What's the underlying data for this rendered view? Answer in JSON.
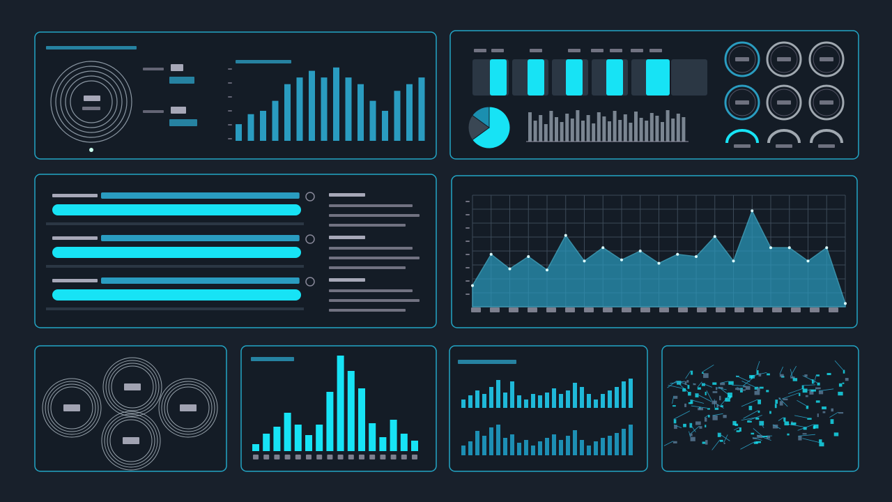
{
  "top_bars": {
    "type": "bar",
    "values": [
      25,
      40,
      45,
      60,
      85,
      95,
      105,
      95,
      110,
      95,
      85,
      60,
      45,
      75,
      85,
      95
    ]
  },
  "pie": {
    "type": "pie",
    "values": [
      65,
      20,
      15
    ]
  },
  "mini_bars": {
    "type": "bar",
    "values": [
      42,
      30,
      38,
      25,
      44,
      35,
      28,
      40,
      33,
      45,
      30,
      38,
      26,
      42,
      36,
      29,
      44,
      31,
      39,
      27,
      43,
      34,
      30,
      41,
      37,
      28,
      45,
      33,
      40,
      35
    ]
  },
  "progress": {
    "type": "progress",
    "values": [
      [
        78,
        98
      ],
      [
        78,
        98
      ],
      [
        78,
        98
      ]
    ]
  },
  "area": {
    "type": "area",
    "values": [
      19,
      47,
      34,
      45,
      33,
      64,
      41,
      53,
      42,
      50,
      39,
      47,
      45,
      63,
      41,
      86,
      53,
      53,
      41,
      53,
      3
    ]
  },
  "histogram": {
    "type": "bar",
    "values": [
      10,
      25,
      35,
      55,
      38,
      23,
      38,
      85,
      137,
      115,
      90,
      40,
      20,
      45,
      25,
      15
    ]
  },
  "twin_bars": {
    "type": "bar",
    "series": [
      {
        "values": [
          12,
          18,
          25,
          20,
          30,
          40,
          22,
          38,
          18,
          12,
          20,
          18,
          22,
          28,
          20,
          25,
          36,
          30,
          20,
          12,
          20,
          25,
          30,
          38,
          42
        ]
      },
      {
        "values": [
          14,
          20,
          35,
          28,
          40,
          44,
          25,
          30,
          18,
          22,
          14,
          20,
          25,
          30,
          22,
          28,
          36,
          22,
          14,
          20,
          25,
          28,
          32,
          38,
          44
        ]
      }
    ]
  }
}
